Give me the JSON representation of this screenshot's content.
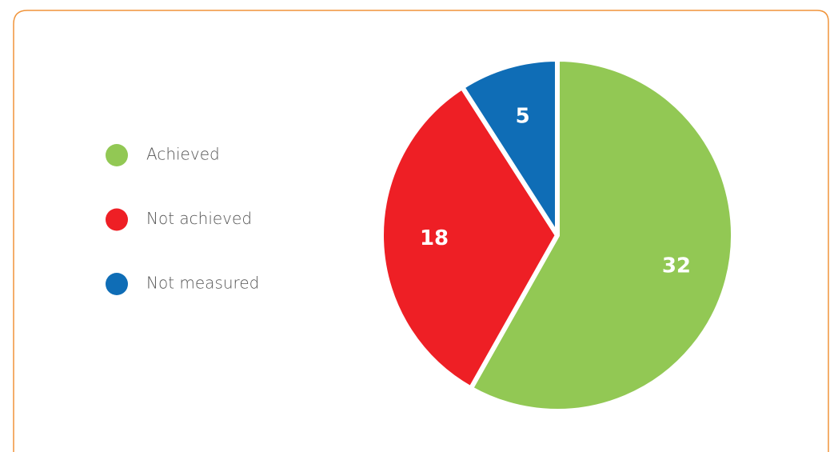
{
  "chart_data": {
    "type": "pie",
    "categories": [
      "Achieved",
      "Not achieved",
      "Not measured"
    ],
    "values": [
      32,
      18,
      5
    ],
    "colors": [
      "#92c854",
      "#ee1f25",
      "#0f6db6"
    ],
    "legend": "left"
  }
}
